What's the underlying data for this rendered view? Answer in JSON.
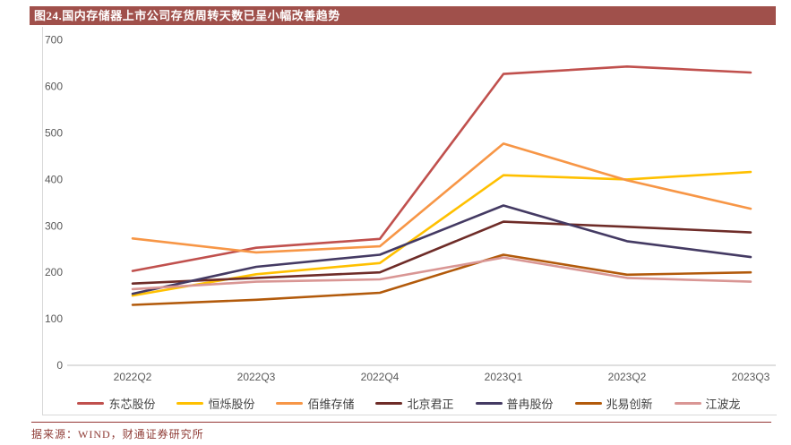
{
  "title": "图24.国内存储器上市公司存货周转天数已呈小幅改善趋势",
  "footer": {
    "source_text": "据来源：WIND，财通证券研究所"
  },
  "colors": {
    "header_bg": "#A0504B",
    "header_text": "#FFFFFF",
    "axis_text": "#595959",
    "legend_text": "#404040",
    "baseline": "#BFBFBF",
    "chart_border": "#D9D9D9",
    "footer_rule": "#953735",
    "footer_text": "#8F3B35"
  },
  "chart_data": {
    "type": "line",
    "title": "图24.国内存储器上市公司存货周转天数已呈小幅改善趋势",
    "categories": [
      "2022Q2",
      "2022Q3",
      "2022Q4",
      "2023Q1",
      "2023Q2",
      "2023Q3"
    ],
    "series": [
      {
        "name": "东芯股份",
        "color": "#C0504D",
        "values": [
          203,
          253,
          272,
          627,
          643,
          630
        ]
      },
      {
        "name": "恒烁股份",
        "color": "#FFC000",
        "values": [
          150,
          196,
          220,
          409,
          400,
          416
        ]
      },
      {
        "name": "佰维存储",
        "color": "#F79646",
        "values": [
          273,
          243,
          256,
          477,
          398,
          337
        ]
      },
      {
        "name": "北京君正",
        "color": "#6E2C28",
        "values": [
          176,
          188,
          200,
          309,
          298,
          286
        ]
      },
      {
        "name": "普冉股份",
        "color": "#443A63",
        "values": [
          154,
          212,
          238,
          344,
          267,
          233
        ]
      },
      {
        "name": "兆易创新",
        "color": "#B25A0B",
        "values": [
          130,
          141,
          156,
          238,
          195,
          200
        ]
      },
      {
        "name": "江波龙",
        "color": "#D99694",
        "values": [
          164,
          180,
          185,
          232,
          188,
          180
        ]
      }
    ],
    "xlabel": "",
    "ylabel": "",
    "ylim": [
      0,
      700
    ],
    "yticks": [
      0,
      100,
      200,
      300,
      400,
      500,
      600,
      700
    ],
    "grid": false,
    "legend_position": "bottom"
  }
}
